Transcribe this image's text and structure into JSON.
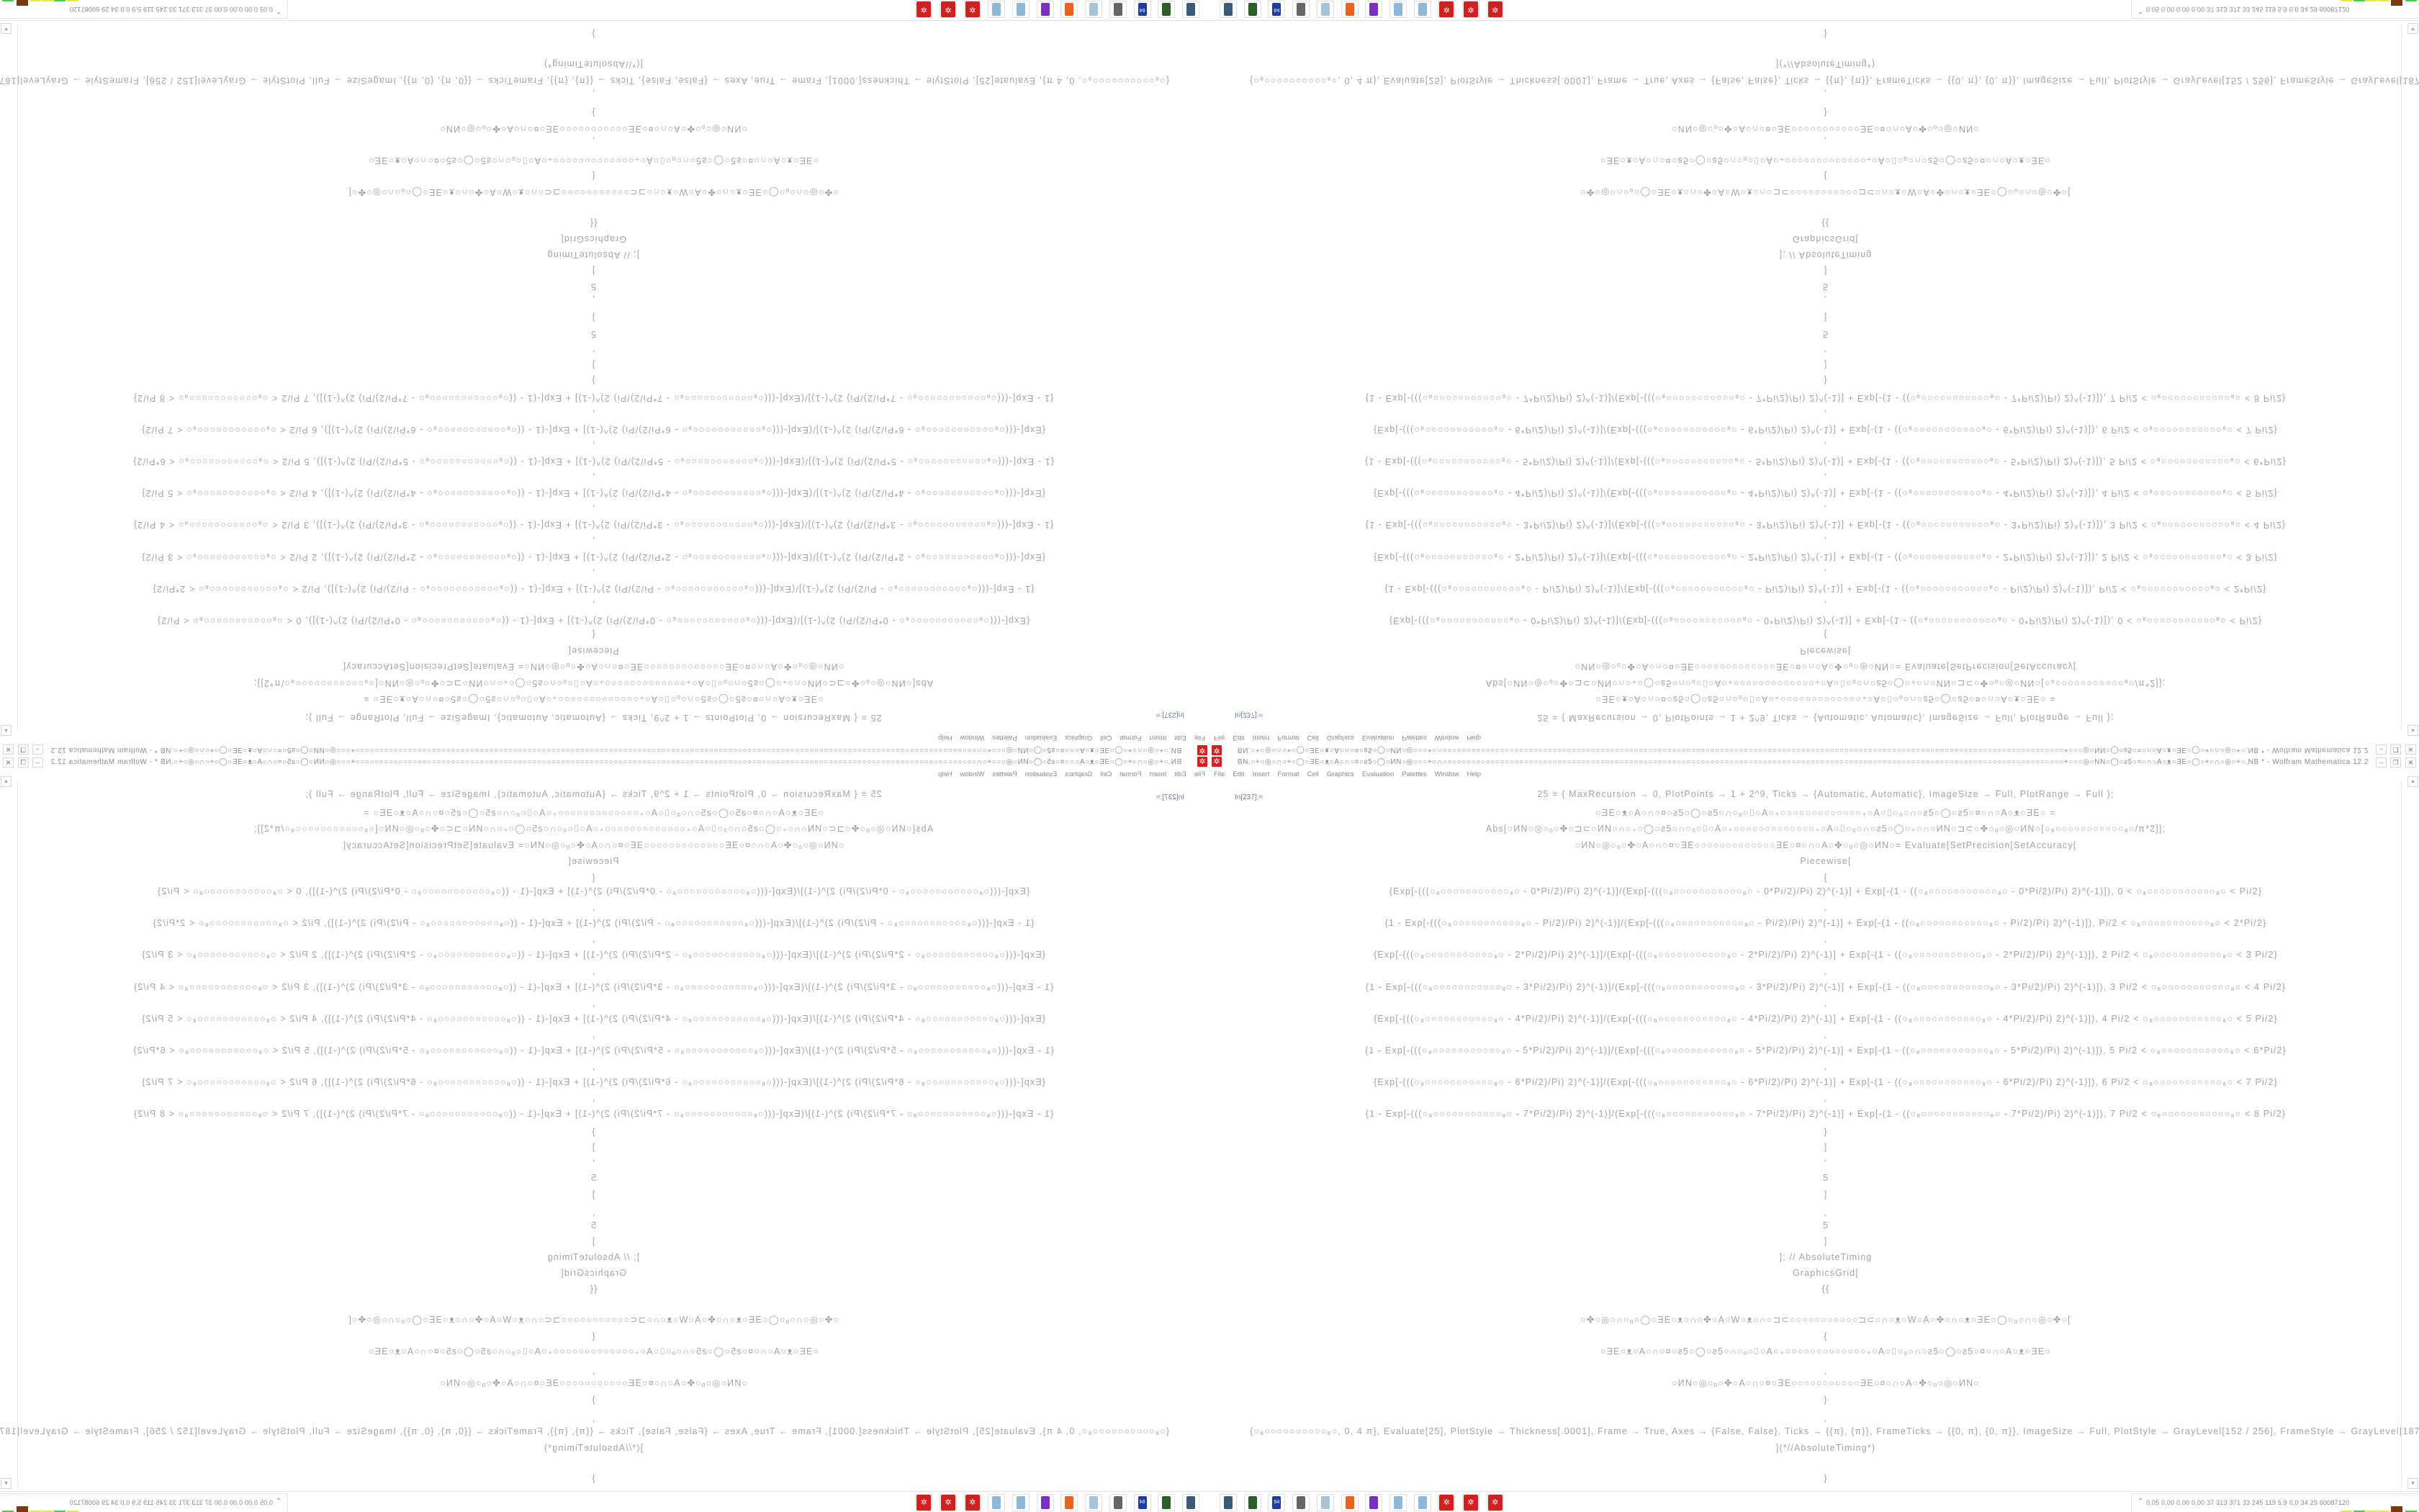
{
  "window": {
    "title": "BN.○+○◎○∩○+○◯○ƎE○ᴥ○A○∩○¤○ƨ5○◯○ИN○◎○○○+○∩○○○○○○○○○○○○○○○○○○○○○○○○○○○○○○○○○○○○○○○○○○○○○○○○○○○○○○○○○○○○○○○○○○○○○○○○○○○○○○○○○○○○○○○○○○○○○○○○○○○○○○○○○○○○○○○○○○○○○○○○○○○○○○○○○○+○○○◎○NN○◯○ƨ5○=○∩○A○ᴥ○ƎE○◯○+○∩○◎○+○.NB * - Wolfram Mathematica 12.2",
    "buttons": {
      "minimize": "–",
      "maximize": "❐",
      "close": "✕"
    },
    "app_icon": "mathematica-icon"
  },
  "menu": [
    "File",
    "Edit",
    "Insert",
    "Format",
    "Cell",
    "Graphics",
    "Evaluation",
    "Palettes",
    "Window",
    "Help"
  ],
  "notebook": {
    "cell_label": "In[237]:=",
    "lines": [
      "25 = {   MaxRecursion → 0, PlotPoints → 1 + 2^9, Ticks → {Automatic, Automatic}, ImageSize → Full, PlotRange → Full   };",
      "○ƎE○ᴥ○A○∩○¤○ƨ5○◯○ƨ5○∩○ₒ○⌷○A○₊○○○○○○○○○○○○○₊○A○⌷○ₒ○∩○ƨ5○◯○ƨ5○¤○∩○A○ᴥ○ƎE○   =",
      "Abs[○ИN○◎○ₒ○✤○⊐⊂○ИN○∩○₊○◯○ƨ5○∩○ₒ○⌷○A○₊○○○○○○○○○○○○○₊○A○⌷○ₒ○∩○ƨ5○◯○₊○∩○ИN○⊐⊂○✤○ₒ○◎○ИN○[○₈○○○○○○○○○○○₈○/π*2]];",
      "○ИN○◎○ₒ○✤○A○∩○¤○ƎE○○○○○○○○○○○○○ƎE○¤○∩○A○✤○ₒ○◎○ИN○= Evaluate[SetPrecision[SetAccuracy[",
      "Piecewise[",
      "{",
      "{Exp[-(((○₈○○○○○○○○○○○₈○ - 0*Pi/2)/Pi) 2)^(-1)]/(Exp[-(((○₈○○○○○○○○○○○₈○ - 0*Pi/2)/Pi) 2)^(-1)] + Exp[-(1 - ((○₈○○○○○○○○○○○₈○ - 0*Pi/2)/Pi) 2)^(-1)]), 0 < ○₈○○○○○○○○○○○₈○ < Pi/2}",
      ",",
      "{1 - Exp[-(((○₈○○○○○○○○○○○₈○ - Pi/2)/Pi) 2)^(-1)]/(Exp[-(((○₈○○○○○○○○○○○₈○ - Pi/2)/Pi) 2)^(-1)] + Exp[-(1 - ((○₈○○○○○○○○○○○₈○ - Pi/2)/Pi) 2)^(-1)]), Pi/2 < ○₈○○○○○○○○○○○₈○ < 2*Pi/2}",
      ",",
      "{Exp[-(((○₈○○○○○○○○○○○₈○ - 2*Pi/2)/Pi) 2)^(-1)]/(Exp[-(((○₈○○○○○○○○○○○₈○ - 2*Pi/2)/Pi) 2)^(-1)] + Exp[-(1 - ((○₈○○○○○○○○○○○₈○ - 2*Pi/2)/Pi) 2)^(-1)]), 2 Pi/2 < ○₈○○○○○○○○○○○₈○ < 3 Pi/2}",
      ",",
      "{1 - Exp[-(((○₈○○○○○○○○○○○₈○ - 3*Pi/2)/Pi) 2)^(-1)]/(Exp[-(((○₈○○○○○○○○○○○₈○ - 3*Pi/2)/Pi) 2)^(-1)] + Exp[-(1 - ((○₈○○○○○○○○○○○₈○ - 3*Pi/2)/Pi) 2)^(-1)]), 3 Pi/2 < ○₈○○○○○○○○○○○₈○ < 4 Pi/2}",
      ",",
      "{Exp[-(((○₈○○○○○○○○○○○₈○ - 4*Pi/2)/Pi) 2)^(-1)]/(Exp[-(((○₈○○○○○○○○○○○₈○ - 4*Pi/2)/Pi) 2)^(-1)] + Exp[-(1 - ((○₈○○○○○○○○○○○₈○ - 4*Pi/2)/Pi) 2)^(-1)]), 4 Pi/2 < ○₈○○○○○○○○○○○₈○ < 5 Pi/2}",
      ",",
      "{1 - Exp[-(((○₈○○○○○○○○○○○₈○ - 5*Pi/2)/Pi) 2)^(-1)]/(Exp[-(((○₈○○○○○○○○○○○₈○ - 5*Pi/2)/Pi) 2)^(-1)] + Exp[-(1 - ((○₈○○○○○○○○○○○₈○ - 5*Pi/2)/Pi) 2)^(-1)]), 5 Pi/2 < ○₈○○○○○○○○○○○₈○ < 6*Pi/2}",
      ",",
      "{Exp[-(((○₈○○○○○○○○○○○₈○ - 6*Pi/2)/Pi) 2)^(-1)]/(Exp[-(((○₈○○○○○○○○○○○₈○ - 6*Pi/2)/Pi) 2)^(-1)] + Exp[-(1 - ((○₈○○○○○○○○○○○₈○ - 6*Pi/2)/Pi) 2)^(-1)]), 6 Pi/2 < ○₈○○○○○○○○○○○₈○ < 7 Pi/2}",
      ",",
      "{1 - Exp[-(((○₈○○○○○○○○○○○₈○ - 7*Pi/2)/Pi) 2)^(-1)]/(Exp[-(((○₈○○○○○○○○○○○₈○ - 7*Pi/2)/Pi) 2)^(-1)] + Exp[-(1 - ((○₈○○○○○○○○○○○₈○ - 7*Pi/2)/Pi) 2)^(-1)]), 7 Pi/2 < ○₈○○○○○○○○○○○₈○ < 8 Pi/2}",
      "}",
      "]",
      ",",
      "5",
      "]",
      ",",
      "5",
      "]",
      "]; // AbsoluteTiming",
      "GraphicsGrid[",
      "{{",
      "○✤○◎○∩○ₒ○◯○ƎE○ᴥ○∩○✤○A○W○ᴥ○∩○⊐⊂○○○○○○○○○○○⊐⊂○∩○ᴥ○W○A○✤○∩○ᴥ○ƎE○◯○ₒ○∩○◎○✤○[",
      "{",
      "○ƎE○ᴥ○A○∩○¤○ƨ5○◯○ƨ5○∩○ₒ○⌷○A○₊○○○○○○○○○○○○○₊○A○⌷○ₒ○∩○ƨ5○◯○ƨ5○¤○∩○A○ᴥ○ƎE○",
      ",",
      "○ИN○◎○ₒ○✤○A○∩○¤○ƎE○○○○○○○○○○○ƎE○¤○∩○A○✤○ₒ○◎○ИN○",
      "}",
      ",",
      "{○₈○○○○○○○○○○₈○, 0, 4 π}, Evaluate[25], PlotStyle → Thickness[.0001], Frame → True, Axes → {False, False}, Ticks → {{π}, {π}}, FrameTicks → {{0, π}, {0, π}}, ImageSize → Full, PlotStyle → GrayLevel[152 / 256], FrameStyle → GrayLevel[187 / 256]",
      "](*//AbsoluteTiming*)",
      "}"
    ]
  },
  "taskbar": {
    "icons": [
      {
        "name": "computer-monitor",
        "color": "#3b5a7a",
        "label": ""
      },
      {
        "name": "green-device",
        "color": "#2f5d2a",
        "label": ""
      },
      {
        "name": "floppy-disk",
        "color": "#1f3fa0",
        "label": "64"
      },
      {
        "name": "terminal",
        "color": "#666666",
        "label": ""
      },
      {
        "name": "notepad",
        "color": "#a9c4d8",
        "label": ""
      },
      {
        "name": "firefox",
        "color": "#e8641e",
        "label": ""
      },
      {
        "name": "purple-app",
        "color": "#7a2fbf",
        "label": ""
      },
      {
        "name": "calculator",
        "color": "#8fb8d8",
        "label": ""
      },
      {
        "name": "calculator",
        "color": "#8fb8d8",
        "label": ""
      },
      {
        "name": "mathematica",
        "color": "#d21f1f",
        "label": "✲"
      },
      {
        "name": "mathematica",
        "color": "#d21f1f",
        "label": "✲"
      },
      {
        "name": "mathematica",
        "color": "#d21f1f",
        "label": "✲"
      }
    ],
    "tray_chevron": "⌃",
    "tray_text": "0.05 0.00 0.00 0.00   37   313  371   33   245  119   5.9   0.0    34    29  60087120",
    "meter_colors": [
      "#e8e84a",
      "#4ccf4c",
      "#e8e84a",
      "#e8e84a",
      "#7a3a10",
      "#4ccf4c"
    ]
  }
}
